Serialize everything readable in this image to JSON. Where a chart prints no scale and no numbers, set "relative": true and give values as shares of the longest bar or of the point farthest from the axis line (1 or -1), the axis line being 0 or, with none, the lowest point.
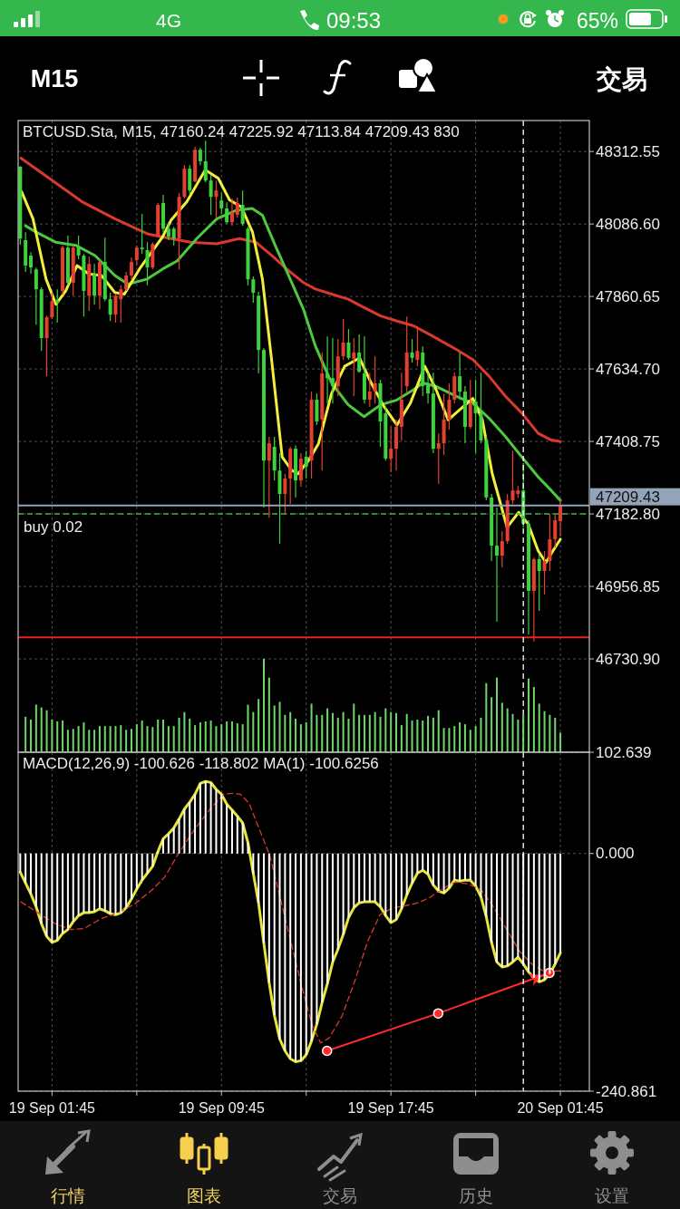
{
  "chart_data": [
    {
      "type": "other",
      "annotations": [
        "4G",
        "09:53",
        "65%",
        "M15",
        "交易"
      ]
    },
    {
      "type": "candlestick",
      "title": "BTCUSD.Sta, M15, 47160.24 47225.92 47113.84 47209.43 830",
      "x": [
        "--09-19T00:15",
        "--09-19T00:30",
        "--09-19T00:45",
        "--09-19T01:00",
        "--09-19T01:15",
        "--09-19T01:30",
        "--09-19T01:45",
        "--09-19T02:00",
        "--09-19T02:15",
        "--09-19T02:30",
        "--09-19T02:45",
        "--09-19T03:00",
        "--09-19T03:15",
        "--09-19T03:30",
        "--09-19T03:45",
        "--09-19T04:00",
        "--09-19T04:15",
        "--09-19T04:30",
        "--09-19T04:45",
        "--09-19T05:00",
        "--09-19T05:15",
        "--09-19T05:30",
        "--09-19T05:45",
        "--09-19T06:00",
        "--09-19T06:15",
        "--09-19T06:30",
        "--09-19T06:45",
        "--09-19T07:00",
        "--09-19T07:15",
        "--09-19T07:30",
        "--09-19T07:45",
        "--09-19T08:00",
        "--09-19T08:15",
        "--09-19T08:30",
        "--09-19T08:45",
        "--09-19T09:00",
        "--09-19T09:15",
        "--09-19T09:30",
        "--09-19T09:45",
        "--09-19T10:00",
        "--09-19T10:15",
        "--09-19T10:30",
        "--09-19T10:45",
        "--09-19T11:00",
        "--09-19T11:15",
        "--09-19T11:30",
        "--09-19T11:45",
        "--09-19T12:00",
        "--09-19T12:15",
        "--09-19T12:30",
        "--09-19T12:45",
        "--09-19T13:00",
        "--09-19T13:15",
        "--09-19T13:30",
        "--09-19T13:45",
        "--09-19T14:00",
        "--09-19T14:15",
        "--09-19T14:30",
        "--09-19T14:45",
        "--09-19T15:00",
        "--09-19T15:15",
        "--09-19T15:30",
        "--09-19T15:45",
        "--09-19T16:00",
        "--09-19T16:15",
        "--09-19T16:30",
        "--09-19T16:45",
        "--09-19T17:00",
        "--09-19T17:15",
        "--09-19T17:30",
        "--09-19T17:45",
        "--09-19T18:00",
        "--09-19T18:15",
        "--09-19T18:30",
        "--09-19T18:45",
        "--09-19T19:00",
        "--09-19T19:15",
        "--09-19T19:30",
        "--09-19T19:45",
        "--09-19T20:00",
        "--09-19T20:15",
        "--09-19T20:30",
        "--09-19T20:45",
        "--09-19T21:00",
        "--09-19T21:15",
        "--09-19T21:30",
        "--09-19T21:45",
        "--09-19T22:00",
        "--09-19T22:15",
        "--09-19T22:30",
        "--09-19T22:45",
        "--09-19T23:00",
        "--09-19T23:15",
        "--09-19T23:30",
        "--09-19T23:45",
        "--09-20T00:00",
        "--09-20T00:15",
        "--09-20T00:30",
        "--09-20T00:45",
        "--09-20T01:00",
        "--09-20T01:15",
        "--09-20T01:30",
        "--09-20T01:45"
      ],
      "ohlc": [
        [
          48265,
          48267,
          48022,
          48041
        ],
        [
          48036,
          48061,
          47937,
          47957
        ],
        [
          47988,
          47999,
          47931,
          47951
        ],
        [
          47945,
          47951,
          47773,
          47883
        ],
        [
          47883,
          47889,
          47691,
          47731
        ],
        [
          47731,
          47801,
          47612,
          47796
        ],
        [
          47796,
          47872,
          47790,
          47846
        ],
        [
          47849,
          47883,
          47779,
          47841
        ],
        [
          47878,
          48019,
          47866,
          48013
        ],
        [
          48013,
          48050,
          47895,
          47903
        ],
        [
          47903,
          48019,
          47863,
          48013
        ],
        [
          48013,
          48050,
          47976,
          47988
        ],
        [
          47988,
          47993,
          47798,
          47878
        ],
        [
          47863,
          47985,
          47815,
          47962
        ],
        [
          47931,
          47962,
          47835,
          47863
        ],
        [
          47863,
          47974,
          47821,
          47968
        ],
        [
          47968,
          48044,
          47846,
          47852
        ],
        [
          47852,
          47872,
          47784,
          47804
        ],
        [
          47804,
          47869,
          47779,
          47863
        ],
        [
          47852,
          47895,
          47779,
          47883
        ],
        [
          47883,
          47937,
          47878,
          47926
        ],
        [
          47926,
          47982,
          47914,
          47968
        ],
        [
          47974,
          48019,
          47957,
          48013
        ],
        [
          48013,
          48118,
          47993,
          48008
        ],
        [
          48005,
          48030,
          47895,
          47951
        ],
        [
          47951,
          48030,
          47945,
          48024
        ],
        [
          48050,
          48152,
          48044,
          48146
        ],
        [
          48152,
          48177,
          48061,
          48072
        ],
        [
          48072,
          48092,
          48036,
          48047
        ],
        [
          48072,
          48078,
          48019,
          48041
        ],
        [
          48041,
          48183,
          47945,
          48171
        ],
        [
          48171,
          48270,
          48166,
          48259
        ],
        [
          48259,
          48270,
          48180,
          48191
        ],
        [
          48219,
          48327,
          48217,
          48318
        ],
        [
          48318,
          48324,
          48270,
          48282
        ],
        [
          48282,
          48346,
          48217,
          48222
        ],
        [
          48222,
          48239,
          48115,
          48171
        ],
        [
          48171,
          48222,
          48103,
          48191
        ],
        [
          48160,
          48183,
          48118,
          48135
        ],
        [
          48135,
          48154,
          48087,
          48092
        ],
        [
          48092,
          48166,
          48081,
          48123
        ],
        [
          48115,
          48169,
          48106,
          48152
        ],
        [
          48146,
          48191,
          48081,
          48087
        ],
        [
          48072,
          48078,
          47895,
          47914
        ],
        [
          47914,
          47923,
          47841,
          47872
        ],
        [
          47863,
          47875,
          47621,
          47694
        ],
        [
          47694,
          47700,
          47203,
          47349
        ],
        [
          47349,
          47423,
          47171,
          47403
        ],
        [
          47392,
          47423,
          47287,
          47318
        ],
        [
          47318,
          47372,
          47090,
          47245
        ],
        [
          47245,
          47307,
          47183,
          47293
        ],
        [
          47293,
          47392,
          47214,
          47386
        ],
        [
          47386,
          47397,
          47234,
          47287
        ],
        [
          47287,
          47372,
          47268,
          47355
        ],
        [
          47361,
          47380,
          47293,
          47330
        ],
        [
          47349,
          47564,
          47293,
          47539
        ],
        [
          47539,
          47558,
          47460,
          47471
        ],
        [
          47477,
          47686,
          47318,
          47621
        ],
        [
          47621,
          47736,
          47527,
          47606
        ],
        [
          47606,
          47731,
          47527,
          47581
        ],
        [
          47581,
          47728,
          47550,
          47674
        ],
        [
          47674,
          47790,
          47663,
          47717
        ],
        [
          47717,
          47759,
          47663,
          47669
        ],
        [
          47666,
          47731,
          47550,
          47686
        ],
        [
          47686,
          47742,
          47623,
          47626
        ],
        [
          47621,
          47736,
          47527,
          47539
        ],
        [
          47539,
          47623,
          47516,
          47564
        ],
        [
          47564,
          47674,
          47527,
          47590
        ],
        [
          47590,
          47601,
          47392,
          47471
        ],
        [
          47496,
          47516,
          47349,
          47355
        ],
        [
          47355,
          47454,
          47313,
          47386
        ],
        [
          47386,
          47477,
          47318,
          47454
        ],
        [
          47454,
          47623,
          47412,
          47539
        ],
        [
          47581,
          47798,
          47558,
          47686
        ],
        [
          47686,
          47728,
          47654,
          47669
        ],
        [
          47663,
          47767,
          47643,
          47691
        ],
        [
          47686,
          47705,
          47550,
          47581
        ],
        [
          47587,
          47623,
          47527,
          47558
        ],
        [
          47558,
          47623,
          47372,
          47386
        ],
        [
          47386,
          47434,
          47276,
          47403
        ],
        [
          47403,
          47558,
          47366,
          47477
        ],
        [
          47477,
          47590,
          47445,
          47539
        ],
        [
          47539,
          47623,
          47527,
          47612
        ],
        [
          47612,
          47686,
          47539,
          47564
        ],
        [
          47564,
          47581,
          47403,
          47454
        ],
        [
          47454,
          47601,
          47448,
          47527
        ],
        [
          47533,
          47601,
          47372,
          47496
        ],
        [
          47496,
          47623,
          47403,
          47412
        ],
        [
          47412,
          47423,
          47225,
          47234
        ],
        [
          47234,
          47245,
          47036,
          47084
        ],
        [
          47084,
          47203,
          46847,
          47053
        ],
        [
          47053,
          47129,
          47016,
          47098
        ],
        [
          47098,
          47245,
          47090,
          47225
        ],
        [
          47225,
          47380,
          47214,
          47256
        ],
        [
          47245,
          47270,
          47234,
          47256
        ],
        [
          47256,
          47341,
          47140,
          47152
        ],
        [
          47152,
          47163,
          46807,
          46943
        ],
        [
          46943,
          47047,
          46785,
          47042
        ],
        [
          47042,
          47059,
          46881,
          47005
        ],
        [
          47005,
          47067,
          46931,
          47036
        ],
        [
          47036,
          47183,
          47005,
          47104
        ],
        [
          47104,
          47183,
          47078,
          47163
        ],
        [
          47160.24,
          47225.92,
          47113.84,
          47209.43
        ]
      ],
      "series": [
        {
          "type": "line",
          "color": "#d9392e",
          "x": [
            "--09-19T00:17",
            "--09-19T03:10",
            "--09-19T04:43",
            "--09-19T06:15",
            "--09-19T06:58",
            "--09-19T08:17",
            "--09-19T09:32",
            "--09-19T10:36",
            "--09-19T11:22",
            "--09-19T12:08",
            "--09-19T12:55",
            "--09-19T13:37",
            "--09-19T14:11",
            "--09-19T14:57",
            "--09-19T15:44",
            "--09-19T16:29",
            "--09-19T17:16",
            "--09-19T18:02",
            "--09-19T18:49",
            "--09-19T19:35",
            "--09-19T20:51",
            "--09-19T21:37",
            "--09-19T22:23",
            "--09-19T23:10",
            "--09-19T23:56",
            "--09-20T00:42",
            "--09-20T01:19",
            "--09-20T01:45"
          ],
          "values": [
            48292,
            48156,
            48103,
            48056,
            48046,
            48030,
            48025,
            48041,
            48030,
            47988,
            47941,
            47904,
            47884,
            47868,
            47852,
            47826,
            47800,
            47784,
            47769,
            47742,
            47695,
            47664,
            47612,
            47549,
            47497,
            47434,
            47413,
            47408
          ]
        },
        {
          "type": "line",
          "color": "#4cc93f",
          "x": [
            "--09-19T00:30",
            "--09-19T01:00",
            "--09-19T01:55",
            "--09-19T02:52",
            "--09-19T03:47",
            "--09-19T04:43",
            "--09-19T05:20",
            "--09-19T06:15",
            "--09-19T06:58",
            "--09-19T07:40",
            "--09-19T08:35",
            "--09-19T09:32",
            "--09-19T10:27",
            "--09-19T11:12",
            "--09-19T11:41",
            "--09-19T12:17",
            "--09-19T12:55",
            "--09-19T13:37",
            "--09-19T14:11",
            "--09-19T14:57",
            "--09-19T15:44",
            "--09-19T16:29",
            "--09-19T17:16",
            "--09-19T18:02",
            "--09-19T18:49",
            "--09-19T19:16",
            "--09-19T19:53",
            "--09-19T20:51",
            "--09-19T21:37",
            "--09-19T22:23",
            "--09-19T23:10",
            "--09-19T23:56",
            "--09-20T00:42",
            "--09-20T01:19",
            "--09-20T01:45"
          ],
          "values": [
            48081,
            48061,
            48030,
            48020,
            47988,
            47926,
            47899,
            47915,
            47946,
            47972,
            48041,
            48103,
            48129,
            48135,
            48114,
            48020,
            47926,
            47821,
            47706,
            47591,
            47523,
            47486,
            47523,
            47538,
            47570,
            47591,
            47580,
            47549,
            47528,
            47481,
            47423,
            47360,
            47298,
            47256,
            47225
          ]
        },
        {
          "type": "line",
          "color": "#f2ee3c",
          "x": [
            "--09-19T00:19",
            "--09-19T00:51",
            "--09-19T01:28",
            "--09-19T01:56",
            "--09-19T02:24",
            "--09-19T02:56",
            "--09-19T03:29",
            "--09-19T04:05",
            "--09-19T04:43",
            "--09-19T05:10",
            "--09-19T05:56",
            "--09-19T06:58",
            "--09-19T07:22",
            "--09-19T08:07",
            "--09-19T08:59",
            "--09-19T09:36",
            "--09-19T10:08",
            "--09-19T10:41",
            "--09-19T11:13",
            "--09-19T11:41",
            "--09-19T12:08",
            "--09-19T12:37",
            "--09-19T13:04",
            "--09-19T13:22",
            "--09-19T13:52",
            "--09-19T14:20",
            "--09-19T14:57",
            "--09-19T15:34",
            "--09-19T16:16",
            "--09-19T16:49",
            "--09-19T17:25",
            "--09-19T18:02",
            "--09-19T18:40",
            "--09-19T19:21",
            "--09-19T19:53",
            "--09-19T20:27",
            "--09-19T20:59",
            "--09-19T21:37",
            "--09-19T22:04",
            "--09-19T22:32",
            "--09-19T23:14",
            "--09-19T23:47",
            "--09-20T00:14",
            "--09-20T00:42",
            "--09-20T01:04",
            "--09-20T01:24",
            "--09-20T01:45"
          ],
          "values": [
            48187,
            48103,
            47915,
            47836,
            47878,
            47957,
            47931,
            47926,
            47873,
            47868,
            47952,
            48046,
            48098,
            48156,
            48255,
            48229,
            48161,
            48140,
            48061,
            47915,
            47653,
            47360,
            47319,
            47308,
            47350,
            47402,
            47559,
            47643,
            47669,
            47591,
            47518,
            47460,
            47528,
            47643,
            47570,
            47476,
            47507,
            47543,
            47476,
            47308,
            47141,
            47188,
            47151,
            47068,
            47031,
            47068,
            47104
          ]
        }
      ],
      "xlim": [
        "--09-19T00:09",
        "--09-20T03:07"
      ],
      "xticks": [
        {
          "value": "--09-19T01:45",
          "label": null
        },
        {
          "value": "--09-19T05:45",
          "label": null
        },
        {
          "value": "--09-19T09:45",
          "label": null
        },
        {
          "value": "--09-19T13:45",
          "label": null
        },
        {
          "value": "--09-19T17:45",
          "label": null
        },
        {
          "value": "--09-19T21:45",
          "label": null
        },
        {
          "value": "--09-20T01:45",
          "label": null
        }
      ],
      "ylim": [
        46440,
        48409
      ],
      "yticks": [
        48312.55,
        {
          "value": 48086.6,
          "label": "48086.60"
        },
        47860.65,
        {
          "value": 47634.7,
          "label": "47634.70"
        },
        47408.75,
        {
          "value": 47182.8,
          "label": "47182.80"
        },
        46956.85,
        {
          "value": 46730.9,
          "label": "46730.90"
        }
      ],
      "grid": true,
      "tick_labels": "y",
      "ref_lines": [
        {
          "axis": "y",
          "value": 47183,
          "label": "buy 0.02",
          "color": "#3fae4a",
          "line_style": "dashed"
        },
        {
          "axis": "y",
          "value": 47209.43,
          "label": "47209.43",
          "color": "#93a3b8",
          "line_style": "solid"
        },
        {
          "axis": "y",
          "value": 46798,
          "color": "#e8241f",
          "line_style": "solid"
        },
        {
          "axis": "x",
          "value": "--09-20T00:00",
          "color": "#ffffff",
          "line_style": "dashed"
        }
      ]
    },
    {
      "type": "bar",
      "relative": true,
      "color": "#6fd66a",
      "x": [
        "--09-19T00:30",
        "--09-19T00:45",
        "--09-19T01:00",
        "--09-19T01:15",
        "--09-19T01:30",
        "--09-19T01:45",
        "--09-19T02:00",
        "--09-19T02:15",
        "--09-19T02:30",
        "--09-19T02:45",
        "--09-19T03:00",
        "--09-19T03:15",
        "--09-19T03:30",
        "--09-19T03:45",
        "--09-19T04:00",
        "--09-19T04:15",
        "--09-19T04:30",
        "--09-19T04:45",
        "--09-19T05:00",
        "--09-19T05:15",
        "--09-19T05:30",
        "--09-19T05:45",
        "--09-19T06:00",
        "--09-19T06:15",
        "--09-19T06:30",
        "--09-19T06:45",
        "--09-19T07:00",
        "--09-19T07:15",
        "--09-19T07:30",
        "--09-19T07:45",
        "--09-19T08:00",
        "--09-19T08:15",
        "--09-19T08:30",
        "--09-19T08:45",
        "--09-19T09:00",
        "--09-19T09:15",
        "--09-19T09:30",
        "--09-19T09:45",
        "--09-19T10:00",
        "--09-19T10:15",
        "--09-19T10:30",
        "--09-19T10:45",
        "--09-19T11:00",
        "--09-19T11:15",
        "--09-19T11:30",
        "--09-19T11:45",
        "--09-19T12:00",
        "--09-19T12:15",
        "--09-19T12:30",
        "--09-19T12:45",
        "--09-19T13:00",
        "--09-19T13:15",
        "--09-19T13:30",
        "--09-19T13:45",
        "--09-19T14:00",
        "--09-19T14:15",
        "--09-19T14:30",
        "--09-19T14:45",
        "--09-19T15:00",
        "--09-19T15:15",
        "--09-19T15:30",
        "--09-19T15:45",
        "--09-19T16:00",
        "--09-19T16:15",
        "--09-19T16:30",
        "--09-19T16:45",
        "--09-19T17:00",
        "--09-19T17:15",
        "--09-19T17:30",
        "--09-19T17:45",
        "--09-19T18:00",
        "--09-19T18:15",
        "--09-19T18:30",
        "--09-19T18:45",
        "--09-19T19:00",
        "--09-19T19:15",
        "--09-19T19:30",
        "--09-19T19:45",
        "--09-19T20:00",
        "--09-19T20:15",
        "--09-19T20:30",
        "--09-19T20:45",
        "--09-19T21:00",
        "--09-19T21:15",
        "--09-19T21:30",
        "--09-19T21:45",
        "--09-19T22:00",
        "--09-19T22:15",
        "--09-19T22:30",
        "--09-19T22:45",
        "--09-19T23:00",
        "--09-19T23:15",
        "--09-19T23:30",
        "--09-19T23:45",
        "--09-20T00:00",
        "--09-20T00:15",
        "--09-20T00:30",
        "--09-20T00:45",
        "--09-20T01:00",
        "--09-20T01:15",
        "--09-20T01:30",
        "--09-20T01:45"
      ],
      "values": [
        0.38,
        0.35,
        0.51,
        0.48,
        0.45,
        0.35,
        0.33,
        0.34,
        0.24,
        0.25,
        0.28,
        0.32,
        0.24,
        0.24,
        0.28,
        0.28,
        0.28,
        0.28,
        0.29,
        0.24,
        0.25,
        0.3,
        0.34,
        0.28,
        0.27,
        0.35,
        0.35,
        0.28,
        0.28,
        0.37,
        0.43,
        0.36,
        0.29,
        0.32,
        0.33,
        0.34,
        0.28,
        0.3,
        0.33,
        0.33,
        0.31,
        0.3,
        0.51,
        0.43,
        0.57,
        1,
        0.8,
        0.5,
        0.54,
        0.4,
        0.43,
        0.36,
        0.3,
        0.32,
        0.52,
        0.4,
        0.4,
        0.47,
        0.42,
        0.37,
        0.43,
        0.36,
        0.52,
        0.4,
        0.4,
        0.4,
        0.43,
        0.38,
        0.47,
        0.43,
        0.42,
        0.29,
        0.41,
        0.34,
        0.35,
        0.34,
        0.39,
        0.37,
        0.45,
        0.26,
        0.26,
        0.28,
        0.32,
        0.3,
        0.24,
        0.28,
        0.37,
        0.74,
        0.59,
        0.8,
        0.53,
        0.47,
        0.41,
        0.35,
        0.4,
        0.79,
        0.7,
        0.52,
        0.44,
        0.4,
        0.37,
        0.21
      ],
      "xlim": [
        "--09-19T00:09",
        "--09-20T03:07"
      ],
      "tick_labels": false
    },
    {
      "type": "bar",
      "title": "MACD(12,26,9) -100.626 -118.802 MA(1) -100.6256",
      "x": [
        "--09-19T00:15",
        "--09-19T00:30",
        "--09-19T00:45",
        "--09-19T01:00",
        "--09-19T01:15",
        "--09-19T01:30",
        "--09-19T01:45",
        "--09-19T02:00",
        "--09-19T02:15",
        "--09-19T02:30",
        "--09-19T02:45",
        "--09-19T03:00",
        "--09-19T03:15",
        "--09-19T03:30",
        "--09-19T03:45",
        "--09-19T04:00",
        "--09-19T04:15",
        "--09-19T04:30",
        "--09-19T04:45",
        "--09-19T05:00",
        "--09-19T05:15",
        "--09-19T05:30",
        "--09-19T05:45",
        "--09-19T06:00",
        "--09-19T06:15",
        "--09-19T06:30",
        "--09-19T06:45",
        "--09-19T07:00",
        "--09-19T07:15",
        "--09-19T07:30",
        "--09-19T07:45",
        "--09-19T08:00",
        "--09-19T08:15",
        "--09-19T08:30",
        "--09-19T08:45",
        "--09-19T09:00",
        "--09-19T09:15",
        "--09-19T09:30",
        "--09-19T09:45",
        "--09-19T10:00",
        "--09-19T10:15",
        "--09-19T10:30",
        "--09-19T10:45",
        "--09-19T11:00",
        "--09-19T11:15",
        "--09-19T11:30",
        "--09-19T11:45",
        "--09-19T12:00",
        "--09-19T12:15",
        "--09-19T12:30",
        "--09-19T12:45",
        "--09-19T13:00",
        "--09-19T13:15",
        "--09-19T13:30",
        "--09-19T13:45",
        "--09-19T14:00",
        "--09-19T14:15",
        "--09-19T14:30",
        "--09-19T14:45",
        "--09-19T15:00",
        "--09-19T15:15",
        "--09-19T15:30",
        "--09-19T15:45",
        "--09-19T16:00",
        "--09-19T16:15",
        "--09-19T16:30",
        "--09-19T16:45",
        "--09-19T17:00",
        "--09-19T17:15",
        "--09-19T17:30",
        "--09-19T17:45",
        "--09-19T18:00",
        "--09-19T18:15",
        "--09-19T18:30",
        "--09-19T18:45",
        "--09-19T19:00",
        "--09-19T19:15",
        "--09-19T19:30",
        "--09-19T19:45",
        "--09-19T20:00",
        "--09-19T20:15",
        "--09-19T20:30",
        "--09-19T20:45",
        "--09-19T21:00",
        "--09-19T21:15",
        "--09-19T21:30",
        "--09-19T21:45",
        "--09-19T22:00",
        "--09-19T22:15",
        "--09-19T22:30",
        "--09-19T22:45",
        "--09-19T23:00",
        "--09-19T23:15",
        "--09-19T23:30",
        "--09-19T23:45",
        "--09-20T00:00",
        "--09-20T00:15",
        "--09-20T00:30",
        "--09-20T00:45",
        "--09-20T01:00",
        "--09-20T01:15",
        "--09-20T01:30",
        "--09-20T01:45"
      ],
      "series": [
        {
          "type": "bar",
          "color": "#ffffff",
          "values": [
            -19,
            -30,
            -41,
            -54,
            -71,
            -84,
            -90,
            -88,
            -81,
            -77,
            -69,
            -63,
            -60,
            -60,
            -59,
            -56,
            -58,
            -61,
            -62,
            -60,
            -55,
            -46,
            -36,
            -27,
            -20,
            -13,
            2,
            15,
            20,
            26,
            35,
            45,
            52,
            60,
            71,
            73,
            72,
            65,
            60,
            50,
            44,
            38,
            31,
            11,
            -20,
            -50,
            -91,
            -131,
            -164,
            -188,
            -200,
            -208,
            -211,
            -210,
            -204,
            -190,
            -173,
            -151,
            -132,
            -110,
            -97,
            -82,
            -65,
            -55,
            -50,
            -49,
            -49,
            -49,
            -54,
            -63,
            -70,
            -67,
            -56,
            -42,
            -30,
            -20,
            -17,
            -21,
            -32,
            -38,
            -40,
            -35,
            -27,
            -28,
            -27,
            -27,
            -33,
            -44,
            -64,
            -90,
            -110,
            -115,
            -114,
            -110,
            -105,
            -112,
            -120,
            -126,
            -130,
            -128,
            -122,
            -112,
            -100.626
          ]
        },
        {
          "type": "line",
          "color": "#e8e634",
          "values": [
            -19,
            -30,
            -41,
            -54,
            -71,
            -84,
            -90,
            -88,
            -81,
            -77,
            -69,
            -63,
            -60,
            -60,
            -59,
            -56,
            -58,
            -61,
            -62,
            -60,
            -55,
            -46,
            -36,
            -27,
            -20,
            -13,
            2,
            15,
            20,
            26,
            35,
            45,
            52,
            60,
            71,
            73,
            72,
            65,
            60,
            50,
            44,
            38,
            31,
            11,
            -20,
            -50,
            -91,
            -131,
            -164,
            -188,
            -200,
            -208,
            -211,
            -210,
            -204,
            -190,
            -173,
            -151,
            -132,
            -110,
            -97,
            -82,
            -65,
            -55,
            -50,
            -49,
            -49,
            -49,
            -54,
            -63,
            -70,
            -67,
            -56,
            -42,
            -30,
            -20,
            -17,
            -21,
            -32,
            -38,
            -40,
            -35,
            -27,
            -28,
            -27,
            -27,
            -33,
            -44,
            -64,
            -90,
            -110,
            -115,
            -114,
            -110,
            -105,
            -112,
            -120,
            -126,
            -130,
            -128,
            -122,
            -112,
            -100.6256
          ]
        },
        {
          "type": "line",
          "color": "#d8392a",
          "line_style": "dashed",
          "x": [
            "--09-19T00:17",
            "--09-19T01:05",
            "--09-19T01:53",
            "--09-19T02:40",
            "--09-19T03:16",
            "--09-19T04:04",
            "--09-19T04:52",
            "--09-19T05:40",
            "--09-19T06:28",
            "--09-19T07:04",
            "--09-19T07:40",
            "--09-19T08:28",
            "--09-19T09:15",
            "--09-19T09:51",
            "--09-19T10:15",
            "--09-19T10:39",
            "--09-19T11:03",
            "--09-19T11:33",
            "--09-19T12:02",
            "--09-19T12:32",
            "--09-19T13:02",
            "--09-19T13:32",
            "--09-19T14:02",
            "--09-19T14:26",
            "--09-19T14:50",
            "--09-19T15:26",
            "--09-19T16:02",
            "--09-19T16:38",
            "--09-19T17:14",
            "--09-19T17:50",
            "--09-19T18:26",
            "--09-19T19:02",
            "--09-19T19:38",
            "--09-19T20:13",
            "--09-19T20:49",
            "--09-19T21:25",
            "--09-19T22:01",
            "--09-19T22:37",
            "--09-19T23:13",
            "--09-19T23:49",
            "--09-20T00:24",
            "--09-20T01:00",
            "--09-20T01:45"
          ],
          "values": [
            -49,
            -60,
            -71,
            -77,
            -76,
            -66,
            -60,
            -51,
            -37,
            -24,
            -2,
            24,
            46,
            60,
            61,
            60,
            51,
            24,
            -2,
            -46,
            -90,
            -134,
            -174,
            -192,
            -187,
            -165,
            -130,
            -90,
            -62,
            -55,
            -53,
            -50,
            -44,
            -35,
            -29,
            -31,
            -37,
            -55,
            -77,
            -99,
            -112,
            -120,
            -118.802
          ]
        },
        {
          "type": "line",
          "color": "#ff2b2b",
          "marker": "circle",
          "x": [
            "--09-19T14:44",
            "--09-19T19:59",
            "--09-20T01:14"
          ],
          "values": [
            -200,
            -162,
            -121
          ]
        }
      ],
      "xlim": [
        "--09-19T00:09",
        "--09-20T03:07"
      ],
      "xticks": [
        {
          "value": "--09-19T01:45",
          "label": "19 Sep 01:45"
        },
        {
          "value": "--09-19T05:45",
          "label": null
        },
        {
          "value": "--09-19T09:45",
          "label": "19 Sep 09:45"
        },
        {
          "value": "--09-19T13:45",
          "label": null
        },
        {
          "value": "--09-19T17:45",
          "label": "19 Sep 17:45"
        },
        {
          "value": "--09-19T21:45",
          "label": null
        },
        {
          "value": "--09-20T01:45",
          "label": "20 Sep 01:45"
        }
      ],
      "ylim": [
        -240.861,
        102.639
      ],
      "yticks": [
        102.639,
        {
          "value": 0,
          "label": "0.000"
        },
        -240.861
      ],
      "grid": true,
      "ref_lines": [
        {
          "axis": "x",
          "value": "--09-20T00:00",
          "color": "#ffffff",
          "line_style": "dashed"
        }
      ]
    },
    {
      "type": "other",
      "annotations": [
        "行情",
        "图表",
        "交易",
        "历史",
        "设置"
      ]
    }
  ]
}
